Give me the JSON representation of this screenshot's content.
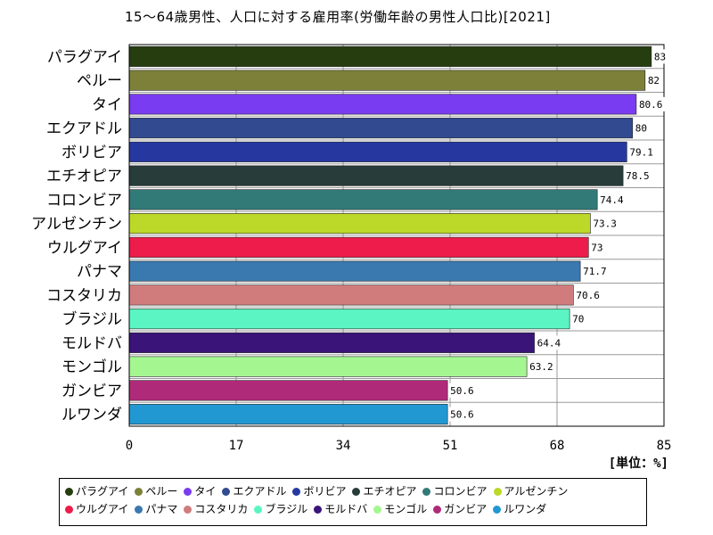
{
  "chart_data": {
    "type": "bar",
    "orientation": "horizontal",
    "title": "15～64歳男性、人口に対する雇用率(労働年齢の男性人口比)[2021]",
    "unit_label": "[単位：%]",
    "xlim": [
      0,
      85
    ],
    "x_ticks": [
      "0",
      "17",
      "34",
      "51",
      "68",
      "85"
    ],
    "grid": true,
    "legend_position": "bottom",
    "categories": [
      "パラグアイ",
      "ペルー",
      "タイ",
      "エクアドル",
      "ボリビア",
      "エチオピア",
      "コロンビア",
      "アルゼンチン",
      "ウルグアイ",
      "パナマ",
      "コスタリカ",
      "ブラジル",
      "モルドバ",
      "モンゴル",
      "ガンビア",
      "ルワンダ"
    ],
    "values": [
      83,
      82,
      80.6,
      80,
      79.1,
      78.5,
      74.4,
      73.3,
      73,
      71.7,
      70.6,
      70,
      64.4,
      63.2,
      50.6,
      50.6
    ],
    "value_labels": [
      "83",
      "82",
      "80.6",
      "80",
      "79.1",
      "78.5",
      "74.4",
      "73.3",
      "73",
      "71.7",
      "70.6",
      "70",
      "64.4",
      "63.2",
      "50.6",
      "50.6"
    ],
    "colors": [
      "#263d10",
      "#7d8038",
      "#7a3cf0",
      "#324a90",
      "#2638a0",
      "#283c3a",
      "#327a78",
      "#bcd828",
      "#ee1c4a",
      "#3a78b0",
      "#d07c7c",
      "#5af5c2",
      "#3a1478",
      "#a4f690",
      "#b02a7a",
      "#2298d2"
    ]
  }
}
